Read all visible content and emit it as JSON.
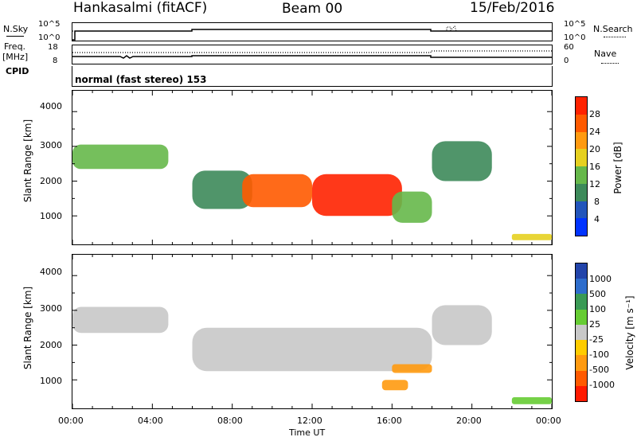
{
  "header": {
    "station": "Hankasalmi (fitACF)",
    "beam": "Beam 00",
    "date": "15/Feb/2016"
  },
  "top_panels": {
    "nsky_label": "N.Sky",
    "nsky_ticks": [
      "10^5",
      "10^0"
    ],
    "nsearch_label": "N.Search",
    "nsearch_ticks": [
      "10^5",
      "10^0"
    ],
    "freq_label": "Freq.",
    "freq_unit": "[MHz]",
    "freq_ticks": [
      "18",
      "8"
    ],
    "nave_label": "Nave",
    "nave_ticks": [
      "60",
      "0"
    ],
    "cpid_label": "CPID",
    "cpid_text": "normal (fast stereo) 153"
  },
  "x_axis": {
    "label": "Time UT",
    "ticks": [
      "00:00",
      "04:00",
      "08:00",
      "12:00",
      "16:00",
      "20:00",
      "00:00"
    ]
  },
  "power_panel": {
    "ylabel": "Slant Range [km]",
    "yticks": [
      "4000",
      "3000",
      "2000",
      "1000"
    ],
    "colorbar_label": "Power [dB]",
    "colorbar_ticks": [
      "28",
      "24",
      "20",
      "16",
      "12",
      "8",
      "4"
    ],
    "colors": [
      "#0033ff",
      "#2255bb",
      "#3d8a5a",
      "#66b84a",
      "#e6d020",
      "#ff9a10",
      "#ff5a00",
      "#ff2200"
    ]
  },
  "velocity_panel": {
    "ylabel": "Slant Range [km]",
    "yticks": [
      "4000",
      "3000",
      "2000",
      "1000"
    ],
    "colorbar_label": "Velocity [m s⁻¹]",
    "colorbar_ticks": [
      "1000",
      "500",
      "100",
      "25",
      "-25",
      "-100",
      "-500",
      "-1000"
    ],
    "colors": [
      "#2244aa",
      "#2e6dcc",
      "#3a9a55",
      "#66cc33",
      "#c8c8c8",
      "#ffcc00",
      "#ff9a10",
      "#ff5a00",
      "#ff1a00"
    ]
  },
  "chart_data": [
    {
      "type": "heatmap",
      "title": "Power",
      "xlabel": "Time UT",
      "ylabel": "Slant Range [km]",
      "xlim_hours": [
        0,
        24
      ],
      "ylim_km": [
        180,
        4600
      ],
      "colorbar": {
        "label": "Power [dB]",
        "range": [
          0,
          32
        ]
      },
      "regions": [
        {
          "t_start": 0.0,
          "t_end": 4.8,
          "r_low": 2350,
          "r_high": 3050,
          "power_db": 14
        },
        {
          "t_start": 6.0,
          "t_end": 9.0,
          "r_low": 1200,
          "r_high": 2300,
          "power_db": 10
        },
        {
          "t_start": 8.5,
          "t_end": 12.0,
          "r_low": 1250,
          "r_high": 2200,
          "power_db": 26
        },
        {
          "t_start": 12.0,
          "t_end": 16.5,
          "r_low": 1000,
          "r_high": 2200,
          "power_db": 28
        },
        {
          "t_start": 16.0,
          "t_end": 18.0,
          "r_low": 800,
          "r_high": 1700,
          "power_db": 12
        },
        {
          "t_start": 18.0,
          "t_end": 21.0,
          "r_low": 2000,
          "r_high": 3150,
          "power_db": 8
        },
        {
          "t_start": 22.0,
          "t_end": 24.0,
          "r_low": 300,
          "r_high": 480,
          "power_db": 16
        }
      ]
    },
    {
      "type": "heatmap",
      "title": "Velocity",
      "xlabel": "Time UT",
      "ylabel": "Slant Range [km]",
      "xlim_hours": [
        0,
        24
      ],
      "ylim_km": [
        180,
        4600
      ],
      "colorbar": {
        "label": "Velocity [m s-1]",
        "range": [
          -1000,
          1000
        ]
      },
      "regions": [
        {
          "t_start": 0.0,
          "t_end": 4.8,
          "r_low": 2350,
          "r_high": 3100,
          "velocity": 0
        },
        {
          "t_start": 6.0,
          "t_end": 18.0,
          "r_low": 1250,
          "r_high": 2500,
          "velocity": 0
        },
        {
          "t_start": 16.0,
          "t_end": 18.0,
          "r_low": 1200,
          "r_high": 1450,
          "velocity": -300
        },
        {
          "t_start": 15.5,
          "t_end": 16.8,
          "r_low": 700,
          "r_high": 1000,
          "velocity": -150
        },
        {
          "t_start": 18.0,
          "t_end": 21.0,
          "r_low": 2000,
          "r_high": 3150,
          "velocity": 0
        },
        {
          "t_start": 22.0,
          "t_end": 24.0,
          "r_low": 300,
          "r_high": 500,
          "velocity": 100
        }
      ]
    }
  ]
}
